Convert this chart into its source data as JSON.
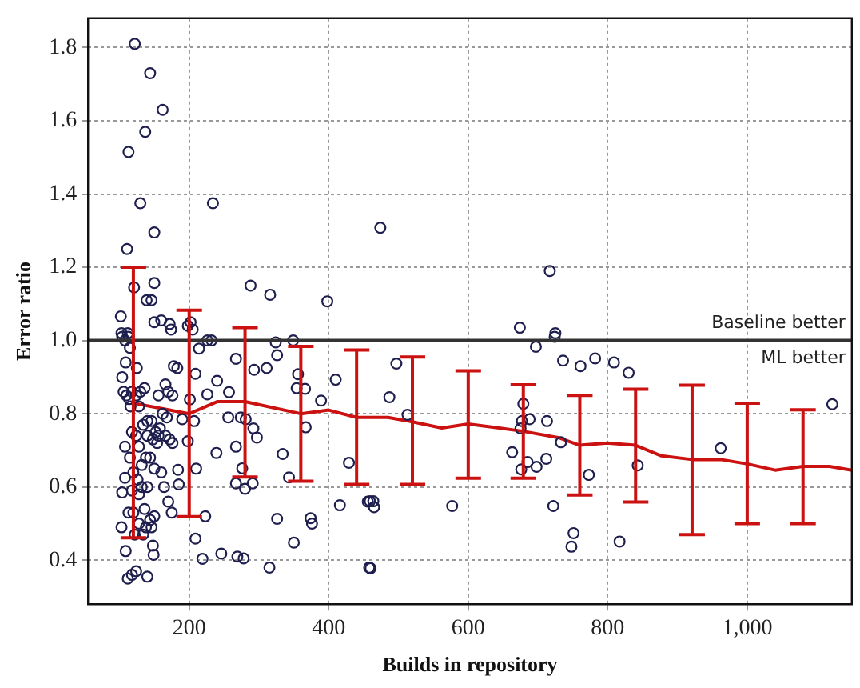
{
  "chart_data": {
    "type": "scatter",
    "xlabel": "Builds in repository",
    "ylabel": "Error ratio",
    "xlim": [
      55,
      1150
    ],
    "ylim": [
      0.28,
      1.88
    ],
    "xticks": [
      200,
      400,
      600,
      800,
      {
        "value": 1000,
        "label": "1,000"
      }
    ],
    "yticks": [
      0.4,
      0.6,
      0.8,
      {
        "value": 1,
        "label": "1.0"
      },
      1.2,
      1.4,
      1.6,
      1.8
    ],
    "grid": true,
    "legend": false,
    "marker": "circle",
    "series": [
      {
        "color": "#1f1f4f",
        "x": [
          122,
          144,
          162,
          137,
          113,
          130,
          234,
          150,
          111,
          121,
          139,
          146,
          150,
          288,
          316,
          398,
          102,
          150,
          160,
          172,
          174,
          198,
          202,
          205,
          103,
          108,
          113,
          115,
          226,
          232,
          214,
          324,
          349,
          326,
          109,
          125,
          104,
          178,
          183,
          267,
          293,
          311,
          356,
          410,
          240,
          209,
          226,
          257,
          354,
          366,
          389,
          201,
          256,
          274,
          281,
          292,
          297,
          367,
          190,
          207,
          334,
          429,
          239,
          267,
          276,
          343,
          267,
          280,
          291,
          184,
          185,
          210,
          198,
          326,
          374,
          376,
          350,
          416,
          456,
          175,
          223,
          209,
          219,
          246,
          269,
          278,
          315,
          458,
          112,
          118,
          124,
          140,
          109,
          149,
          103,
          113,
          108,
          104,
          108,
          115,
          104,
          112,
          106,
          110,
          114,
          118,
          124,
          130,
          136,
          116,
          128,
          140,
          146,
          134,
          118,
          124,
          140,
          148,
          152,
          156,
          128,
          138,
          144,
          132,
          150,
          120,
          126,
          132,
          140,
          118,
          128,
          120,
          136,
          144,
          150,
          128,
          138,
          146,
          122,
          134,
          148,
          166,
          170,
          176,
          156,
          162,
          168,
          158,
          166,
          172,
          176,
          154,
          160,
          164,
          170,
          474,
          717,
          674,
          725,
          724,
          697,
          497,
          736,
          761,
          782,
          809,
          830,
          487,
          513,
          679,
          677,
          688,
          713,
          675,
          733,
          663,
          685,
          676,
          698,
          712,
          773,
          722,
          751,
          748,
          817,
          577,
          459,
          464,
          465,
          460,
          843,
          962,
          1122
        ],
        "values": [
          1.81,
          1.73,
          1.63,
          1.57,
          1.515,
          1.375,
          1.375,
          1.295,
          1.25,
          1.145,
          1.11,
          1.11,
          1.157,
          1.15,
          1.125,
          1.107,
          1.066,
          1.05,
          1.055,
          1.045,
          1.03,
          1.04,
          1.05,
          1.03,
          1.02,
          1.0,
          1.01,
          0.98,
          1.0,
          1.0,
          0.978,
          0.995,
          1.0,
          0.96,
          0.94,
          0.925,
          0.9,
          0.93,
          0.925,
          0.95,
          0.92,
          0.925,
          0.908,
          0.893,
          0.89,
          0.909,
          0.853,
          0.859,
          0.87,
          0.868,
          0.836,
          0.839,
          0.79,
          0.79,
          0.785,
          0.76,
          0.735,
          0.763,
          0.785,
          0.78,
          0.69,
          0.666,
          0.693,
          0.71,
          0.651,
          0.626,
          0.61,
          0.595,
          0.61,
          0.647,
          0.607,
          0.65,
          0.725,
          0.513,
          0.515,
          0.5,
          0.448,
          0.55,
          0.56,
          0.53,
          0.52,
          0.459,
          0.404,
          0.418,
          0.41,
          0.405,
          0.38,
          0.38,
          0.35,
          0.36,
          0.37,
          0.355,
          0.425,
          0.415,
          0.49,
          0.53,
          0.625,
          0.585,
          0.71,
          0.68,
          1.01,
          1.02,
          0.86,
          0.85,
          0.84,
          0.86,
          0.85,
          0.86,
          0.87,
          0.82,
          0.82,
          0.78,
          0.78,
          0.77,
          0.75,
          0.74,
          0.74,
          0.73,
          0.75,
          0.74,
          0.71,
          0.68,
          0.68,
          0.66,
          0.65,
          0.64,
          0.62,
          0.6,
          0.6,
          0.59,
          0.58,
          0.53,
          0.54,
          0.51,
          0.52,
          0.5,
          0.49,
          0.49,
          0.47,
          0.47,
          0.44,
          0.88,
          0.86,
          0.85,
          0.85,
          0.8,
          0.79,
          0.76,
          0.74,
          0.73,
          0.72,
          0.72,
          0.64,
          0.6,
          0.56,
          1.308,
          1.19,
          1.035,
          1.02,
          1.01,
          0.983,
          0.937,
          0.945,
          0.93,
          0.951,
          0.94,
          0.912,
          0.845,
          0.797,
          0.827,
          0.78,
          0.785,
          0.78,
          0.76,
          0.722,
          0.695,
          0.668,
          0.648,
          0.655,
          0.677,
          0.633,
          0.548,
          0.474,
          0.437,
          0.451,
          0.548,
          0.561,
          0.561,
          0.545,
          0.378,
          0.659,
          0.706,
          0.826
        ]
      },
      {
        "type": "line",
        "marker": "none",
        "color": "#cc1111",
        "x": [
          120,
          200,
          240,
          280,
          360,
          400,
          440,
          485,
          520,
          562,
          600,
          640,
          679,
          729,
          760,
          800,
          840,
          877,
          921,
          962,
          1000,
          1040,
          1080,
          1118,
          1150
        ],
        "values": [
          0.829,
          0.8,
          0.833,
          0.833,
          0.8,
          0.81,
          0.79,
          0.79,
          0.778,
          0.761,
          0.772,
          0.762,
          0.752,
          0.735,
          0.714,
          0.72,
          0.714,
          0.685,
          0.675,
          0.675,
          0.663,
          0.646,
          0.656,
          0.656,
          0.646
        ],
        "errors": [
          [
            0.461,
            1.2
          ],
          [
            0.519,
            1.083
          ],
          null,
          [
            0.627,
            1.035
          ],
          [
            0.616,
            0.984
          ],
          null,
          [
            0.607,
            0.974
          ],
          null,
          [
            0.607,
            0.955
          ],
          null,
          [
            0.624,
            0.917
          ],
          null,
          [
            0.624,
            0.879
          ],
          null,
          [
            0.578,
            0.85
          ],
          null,
          [
            0.559,
            0.867
          ],
          null,
          [
            0.47,
            0.878
          ],
          null,
          [
            0.5,
            0.829
          ],
          null,
          [
            0.5,
            0.811
          ],
          null,
          null
        ]
      }
    ],
    "ref_lines": [
      {
        "axis": "y",
        "value": 1,
        "color": "#333333"
      }
    ],
    "annotations": [
      {
        "text": "Baseline better",
        "x": 1150,
        "y": 1
      },
      {
        "text": "ML better",
        "x": 1150,
        "y": 1
      }
    ]
  }
}
